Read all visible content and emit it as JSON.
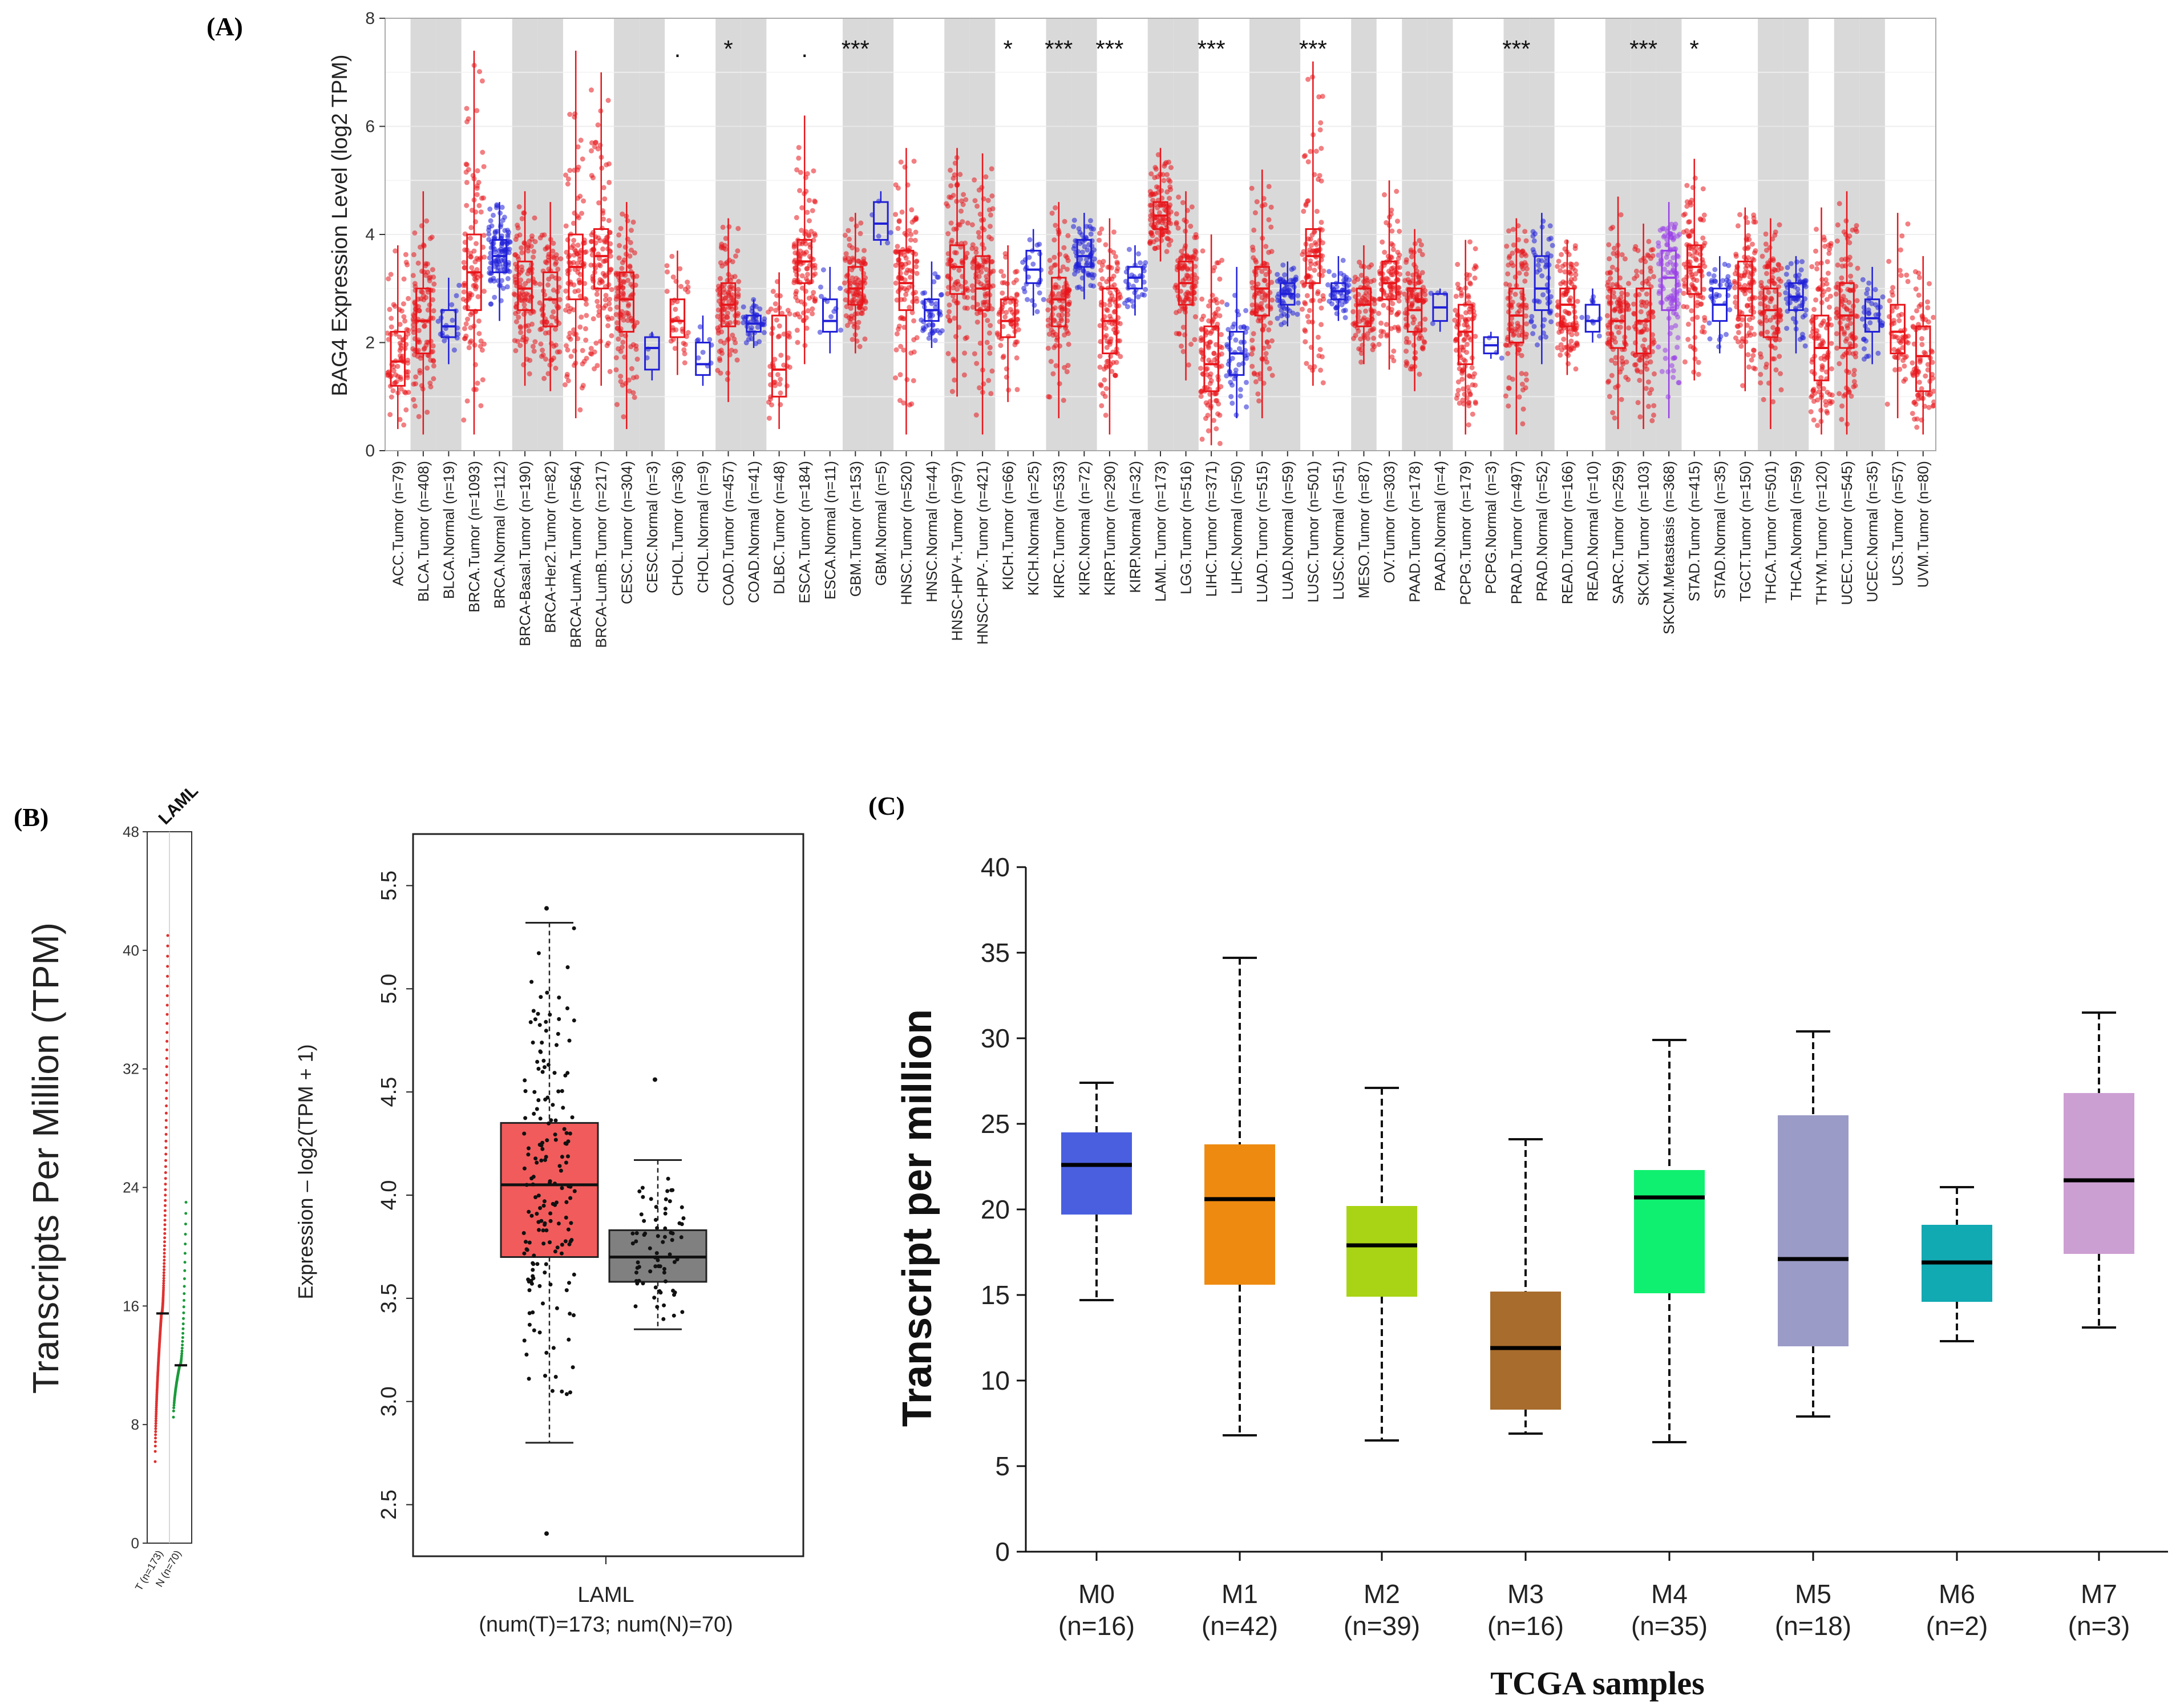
{
  "panel_labels": {
    "a": "(A)",
    "b": "(B)",
    "c": "(C)"
  },
  "chart_data": [
    {
      "id": "A",
      "type": "box",
      "ylabel": "BAG4 Expression Level (log2 TPM)",
      "ylim": [
        0,
        8
      ],
      "yticks": [
        0,
        2,
        4,
        6,
        8
      ],
      "grid": true,
      "groups": [
        {
          "label": "ACC.Tumor (n=79)",
          "kind": "T",
          "shade": false,
          "sig": "",
          "q1": 1.2,
          "med": 1.65,
          "q3": 2.2,
          "min": 0.4,
          "max": 3.8
        },
        {
          "label": "BLCA.Tumor (n=408)",
          "kind": "T",
          "shade": true,
          "sig": "",
          "q1": 1.8,
          "med": 2.4,
          "q3": 3.0,
          "min": 0.3,
          "max": 4.8
        },
        {
          "label": "BLCA.Normal (n=19)",
          "kind": "N",
          "shade": true,
          "sig": "",
          "q1": 2.1,
          "med": 2.3,
          "q3": 2.6,
          "min": 1.6,
          "max": 3.2
        },
        {
          "label": "BRCA.Tumor (n=1093)",
          "kind": "T",
          "shade": false,
          "sig": "",
          "q1": 2.6,
          "med": 3.3,
          "q3": 4.0,
          "min": 0.3,
          "max": 7.4
        },
        {
          "label": "BRCA.Normal (n=112)",
          "kind": "N",
          "shade": false,
          "sig": "",
          "q1": 3.3,
          "med": 3.6,
          "q3": 3.9,
          "min": 2.4,
          "max": 4.6
        },
        {
          "label": "BRCA-Basal.Tumor (n=190)",
          "kind": "T",
          "shade": true,
          "sig": "",
          "q1": 2.6,
          "med": 3.0,
          "q3": 3.5,
          "min": 1.2,
          "max": 4.8
        },
        {
          "label": "BRCA-Her2.Tumor (n=82)",
          "kind": "T",
          "shade": true,
          "sig": "",
          "q1": 2.3,
          "med": 2.8,
          "q3": 3.3,
          "min": 1.1,
          "max": 4.6
        },
        {
          "label": "BRCA-LumA.Tumor (n=564)",
          "kind": "T",
          "shade": false,
          "sig": "",
          "q1": 2.8,
          "med": 3.4,
          "q3": 4.0,
          "min": 0.6,
          "max": 7.4
        },
        {
          "label": "BRCA-LumB.Tumor (n=217)",
          "kind": "T",
          "shade": false,
          "sig": "",
          "q1": 3.0,
          "med": 3.6,
          "q3": 4.1,
          "min": 1.2,
          "max": 7.0
        },
        {
          "label": "CESC.Tumor (n=304)",
          "kind": "T",
          "shade": true,
          "sig": "",
          "q1": 2.2,
          "med": 2.8,
          "q3": 3.3,
          "min": 0.4,
          "max": 4.6
        },
        {
          "label": "CESC.Normal (n=3)",
          "kind": "N",
          "shade": true,
          "sig": "",
          "q1": 1.5,
          "med": 1.9,
          "q3": 2.1,
          "min": 1.3,
          "max": 2.2
        },
        {
          "label": "CHOL.Tumor (n=36)",
          "kind": "T",
          "shade": false,
          "sig": ".",
          "q1": 2.1,
          "med": 2.4,
          "q3": 2.8,
          "min": 1.4,
          "max": 3.7
        },
        {
          "label": "CHOL.Normal (n=9)",
          "kind": "N",
          "shade": false,
          "sig": "",
          "q1": 1.4,
          "med": 1.6,
          "q3": 2.0,
          "min": 1.2,
          "max": 2.5
        },
        {
          "label": "COAD.Tumor (n=457)",
          "kind": "T",
          "shade": true,
          "sig": "*",
          "q1": 2.3,
          "med": 2.7,
          "q3": 3.1,
          "min": 0.9,
          "max": 4.3
        },
        {
          "label": "COAD.Normal (n=41)",
          "kind": "N",
          "shade": true,
          "sig": "",
          "q1": 2.2,
          "med": 2.35,
          "q3": 2.5,
          "min": 1.9,
          "max": 2.8
        },
        {
          "label": "DLBC.Tumor (n=48)",
          "kind": "T",
          "shade": false,
          "sig": "",
          "q1": 1.0,
          "med": 1.5,
          "q3": 2.5,
          "min": 0.4,
          "max": 3.3
        },
        {
          "label": "ESCA.Tumor (n=184)",
          "kind": "T",
          "shade": false,
          "sig": ".",
          "q1": 3.1,
          "med": 3.5,
          "q3": 3.9,
          "min": 1.6,
          "max": 6.2
        },
        {
          "label": "ESCA.Normal (n=11)",
          "kind": "N",
          "shade": false,
          "sig": "",
          "q1": 2.2,
          "med": 2.4,
          "q3": 2.8,
          "min": 1.8,
          "max": 3.4
        },
        {
          "label": "GBM.Tumor (n=153)",
          "kind": "T",
          "shade": true,
          "sig": "***",
          "q1": 2.7,
          "med": 3.0,
          "q3": 3.4,
          "min": 1.8,
          "max": 4.4
        },
        {
          "label": "GBM.Normal (n=5)",
          "kind": "N",
          "shade": true,
          "sig": "",
          "q1": 3.9,
          "med": 4.2,
          "q3": 4.6,
          "min": 3.8,
          "max": 4.8
        },
        {
          "label": "HNSC.Tumor (n=520)",
          "kind": "T",
          "shade": false,
          "sig": "",
          "q1": 2.6,
          "med": 3.1,
          "q3": 3.7,
          "min": 0.3,
          "max": 5.6
        },
        {
          "label": "HNSC.Normal (n=44)",
          "kind": "N",
          "shade": false,
          "sig": "",
          "q1": 2.4,
          "med": 2.6,
          "q3": 2.8,
          "min": 1.9,
          "max": 3.5
        },
        {
          "label": "HNSC-HPV+.Tumor (n=97)",
          "kind": "T",
          "shade": true,
          "sig": "",
          "q1": 2.9,
          "med": 3.4,
          "q3": 3.8,
          "min": 1.0,
          "max": 5.6
        },
        {
          "label": "HNSC-HPV-.Tumor (n=421)",
          "kind": "T",
          "shade": true,
          "sig": "",
          "q1": 2.6,
          "med": 3.0,
          "q3": 3.6,
          "min": 0.3,
          "max": 5.5
        },
        {
          "label": "KICH.Tumor (n=66)",
          "kind": "T",
          "shade": false,
          "sig": "*",
          "q1": 2.1,
          "med": 2.4,
          "q3": 2.8,
          "min": 0.9,
          "max": 3.8
        },
        {
          "label": "KICH.Normal (n=25)",
          "kind": "N",
          "shade": false,
          "sig": "",
          "q1": 3.1,
          "med": 3.35,
          "q3": 3.7,
          "min": 2.5,
          "max": 4.1
        },
        {
          "label": "KIRC.Tumor (n=533)",
          "kind": "T",
          "shade": true,
          "sig": "***",
          "q1": 2.3,
          "med": 2.8,
          "q3": 3.2,
          "min": 0.6,
          "max": 4.6
        },
        {
          "label": "KIRC.Normal (n=72)",
          "kind": "N",
          "shade": true,
          "sig": "",
          "q1": 3.4,
          "med": 3.6,
          "q3": 3.9,
          "min": 2.8,
          "max": 4.4
        },
        {
          "label": "KIRP.Tumor (n=290)",
          "kind": "T",
          "shade": false,
          "sig": "***",
          "q1": 1.8,
          "med": 2.4,
          "q3": 3.0,
          "min": 0.3,
          "max": 4.3
        },
        {
          "label": "KIRP.Normal (n=32)",
          "kind": "N",
          "shade": false,
          "sig": "",
          "q1": 3.0,
          "med": 3.2,
          "q3": 3.4,
          "min": 2.5,
          "max": 3.8
        },
        {
          "label": "LAML.Tumor (n=173)",
          "kind": "T",
          "shade": true,
          "sig": "",
          "q1": 4.1,
          "med": 4.35,
          "q3": 4.6,
          "min": 3.5,
          "max": 5.6
        },
        {
          "label": "LGG.Tumor (n=516)",
          "kind": "T",
          "shade": true,
          "sig": "",
          "q1": 2.7,
          "med": 3.1,
          "q3": 3.5,
          "min": 1.3,
          "max": 4.8
        },
        {
          "label": "LIHC.Tumor (n=371)",
          "kind": "T",
          "shade": false,
          "sig": "***",
          "q1": 1.1,
          "med": 1.6,
          "q3": 2.3,
          "min": 0.1,
          "max": 4.0
        },
        {
          "label": "LIHC.Normal (n=50)",
          "kind": "N",
          "shade": false,
          "sig": "",
          "q1": 1.4,
          "med": 1.8,
          "q3": 2.2,
          "min": 0.6,
          "max": 3.4
        },
        {
          "label": "LUAD.Tumor (n=515)",
          "kind": "T",
          "shade": true,
          "sig": "",
          "q1": 2.5,
          "med": 3.0,
          "q3": 3.4,
          "min": 0.6,
          "max": 5.2
        },
        {
          "label": "LUAD.Normal (n=59)",
          "kind": "N",
          "shade": true,
          "sig": "",
          "q1": 2.7,
          "med": 2.9,
          "q3": 3.1,
          "min": 2.3,
          "max": 3.5
        },
        {
          "label": "LUSC.Tumor (n=501)",
          "kind": "T",
          "shade": false,
          "sig": "***",
          "q1": 3.1,
          "med": 3.6,
          "q3": 4.1,
          "min": 1.2,
          "max": 7.2
        },
        {
          "label": "LUSC.Normal (n=51)",
          "kind": "N",
          "shade": false,
          "sig": "",
          "q1": 2.8,
          "med": 2.95,
          "q3": 3.1,
          "min": 2.4,
          "max": 3.6
        },
        {
          "label": "MESO.Tumor (n=87)",
          "kind": "T",
          "shade": true,
          "sig": "",
          "q1": 2.3,
          "med": 2.7,
          "q3": 3.0,
          "min": 1.6,
          "max": 3.8
        },
        {
          "label": "OV.Tumor (n=303)",
          "kind": "T",
          "shade": false,
          "sig": "",
          "q1": 2.8,
          "med": 3.1,
          "q3": 3.5,
          "min": 1.5,
          "max": 5.0
        },
        {
          "label": "PAAD.Tumor (n=178)",
          "kind": "T",
          "shade": true,
          "sig": "",
          "q1": 2.2,
          "med": 2.6,
          "q3": 3.0,
          "min": 1.1,
          "max": 4.1
        },
        {
          "label": "PAAD.Normal (n=4)",
          "kind": "N",
          "shade": true,
          "sig": "",
          "q1": 2.4,
          "med": 2.65,
          "q3": 2.9,
          "min": 2.2,
          "max": 3.0
        },
        {
          "label": "PCPG.Tumor (n=179)",
          "kind": "T",
          "shade": false,
          "sig": "",
          "q1": 1.6,
          "med": 2.2,
          "q3": 2.7,
          "min": 0.3,
          "max": 3.9
        },
        {
          "label": "PCPG.Normal (n=3)",
          "kind": "N",
          "shade": false,
          "sig": "",
          "q1": 1.8,
          "med": 1.95,
          "q3": 2.1,
          "min": 1.7,
          "max": 2.2
        },
        {
          "label": "PRAD.Tumor (n=497)",
          "kind": "T",
          "shade": true,
          "sig": "***",
          "q1": 2.0,
          "med": 2.5,
          "q3": 3.0,
          "min": 0.3,
          "max": 4.3
        },
        {
          "label": "PRAD.Normal (n=52)",
          "kind": "N",
          "shade": true,
          "sig": "",
          "q1": 2.6,
          "med": 3.0,
          "q3": 3.6,
          "min": 1.6,
          "max": 4.4
        },
        {
          "label": "READ.Tumor (n=166)",
          "kind": "T",
          "shade": false,
          "sig": "",
          "q1": 2.3,
          "med": 2.7,
          "q3": 3.0,
          "min": 1.4,
          "max": 3.9
        },
        {
          "label": "READ.Normal (n=10)",
          "kind": "N",
          "shade": false,
          "sig": "",
          "q1": 2.2,
          "med": 2.4,
          "q3": 2.7,
          "min": 2.0,
          "max": 3.0
        },
        {
          "label": "SARC.Tumor (n=259)",
          "kind": "T",
          "shade": true,
          "sig": "",
          "q1": 1.9,
          "med": 2.4,
          "q3": 3.0,
          "min": 0.4,
          "max": 4.7
        },
        {
          "label": "SKCM.Tumor (n=103)",
          "kind": "T",
          "shade": true,
          "sig": "***",
          "q1": 1.8,
          "med": 2.4,
          "q3": 3.0,
          "min": 0.4,
          "max": 4.2
        },
        {
          "label": "SKCM.Metastasis (n=368)",
          "kind": "M",
          "shade": true,
          "sig": "",
          "q1": 2.6,
          "med": 3.2,
          "q3": 3.7,
          "min": 0.6,
          "max": 4.6
        },
        {
          "label": "STAD.Tumor (n=415)",
          "kind": "T",
          "shade": false,
          "sig": "*",
          "q1": 2.9,
          "med": 3.4,
          "q3": 3.8,
          "min": 1.3,
          "max": 5.4
        },
        {
          "label": "STAD.Normal (n=35)",
          "kind": "N",
          "shade": false,
          "sig": "",
          "q1": 2.4,
          "med": 2.7,
          "q3": 3.0,
          "min": 1.8,
          "max": 3.6
        },
        {
          "label": "TGCT.Tumor (n=150)",
          "kind": "T",
          "shade": false,
          "sig": "",
          "q1": 2.5,
          "med": 3.0,
          "q3": 3.5,
          "min": 1.1,
          "max": 4.5
        },
        {
          "label": "THCA.Tumor (n=501)",
          "kind": "T",
          "shade": true,
          "sig": "",
          "q1": 2.1,
          "med": 2.6,
          "q3": 3.0,
          "min": 0.4,
          "max": 4.3
        },
        {
          "label": "THCA.Normal (n=59)",
          "kind": "N",
          "shade": true,
          "sig": "",
          "q1": 2.6,
          "med": 2.85,
          "q3": 3.1,
          "min": 1.8,
          "max": 3.6
        },
        {
          "label": "THYM.Tumor (n=120)",
          "kind": "T",
          "shade": false,
          "sig": "",
          "q1": 1.3,
          "med": 1.9,
          "q3": 2.5,
          "min": 0.3,
          "max": 4.5
        },
        {
          "label": "UCEC.Tumor (n=545)",
          "kind": "T",
          "shade": true,
          "sig": "",
          "q1": 1.9,
          "med": 2.5,
          "q3": 3.1,
          "min": 0.3,
          "max": 4.8
        },
        {
          "label": "UCEC.Normal (n=35)",
          "kind": "N",
          "shade": true,
          "sig": "",
          "q1": 2.2,
          "med": 2.45,
          "q3": 2.8,
          "min": 1.6,
          "max": 3.4
        },
        {
          "label": "UCS.Tumor (n=57)",
          "kind": "T",
          "shade": false,
          "sig": "",
          "q1": 1.8,
          "med": 2.2,
          "q3": 2.7,
          "min": 0.6,
          "max": 4.4
        },
        {
          "label": "UVM.Tumor (n=80)",
          "kind": "T",
          "shade": false,
          "sig": "",
          "q1": 1.1,
          "med": 1.75,
          "q3": 2.3,
          "min": 0.3,
          "max": 3.6
        }
      ],
      "colors": {
        "T": "#e8161b",
        "N": "#2020d8",
        "M": "#9a40e8",
        "shade": "#d9d9d9"
      }
    },
    {
      "id": "B-left",
      "type": "scatter",
      "ylabel": "Transcripts Per Million (TPM)",
      "ylim": [
        0,
        48
      ],
      "yticks": [
        0,
        8,
        16,
        24,
        32,
        40,
        48
      ],
      "column_label": "LAML",
      "xticks": [
        "T (n=173)",
        "N (n=70)"
      ],
      "series": [
        {
          "name": "T",
          "n": 173,
          "median": 15.5,
          "min": 5.5,
          "max": 41,
          "color": "#e03030"
        },
        {
          "name": "N",
          "n": 70,
          "median": 12.0,
          "min": 8.5,
          "max": 23,
          "color": "#1a9a3a"
        }
      ]
    },
    {
      "id": "B-right",
      "type": "box",
      "ylabel": "Expression – log2(TPM + 1)",
      "ylim": [
        2.25,
        5.75
      ],
      "yticks": [
        2.5,
        3.0,
        3.5,
        4.0,
        4.5,
        5.0,
        5.5
      ],
      "xlabel": "LAML",
      "subtitle": "(num(T)=173; num(N)=70)",
      "boxes": [
        {
          "name": "T",
          "min": 2.8,
          "q1": 3.7,
          "med": 4.05,
          "q3": 4.35,
          "max": 5.32,
          "outliers": [
            2.36,
            5.39
          ],
          "n": 173,
          "color": "#f25b5b"
        },
        {
          "name": "N",
          "min": 3.35,
          "q1": 3.58,
          "med": 3.7,
          "q3": 3.83,
          "max": 4.17,
          "outliers": [
            4.56
          ],
          "n": 70,
          "color": "#808080"
        }
      ]
    },
    {
      "id": "C",
      "type": "box",
      "ylabel": "Transcript per million",
      "xlabel": "TCGA samples",
      "ylim": [
        0,
        40
      ],
      "yticks": [
        0,
        5,
        10,
        15,
        20,
        25,
        30,
        35,
        40
      ],
      "categories": [
        "M0",
        "M1",
        "M2",
        "M3",
        "M4",
        "M5",
        "M6",
        "M7"
      ],
      "counts": [
        "(n=16)",
        "(n=42)",
        "(n=39)",
        "(n=16)",
        "(n=35)",
        "(n=18)",
        "(n=2)",
        "(n=3)"
      ],
      "boxes": [
        {
          "min": 14.7,
          "q1": 19.7,
          "med": 22.6,
          "q3": 24.5,
          "max": 27.4,
          "color": "#4a5fe0"
        },
        {
          "min": 6.8,
          "q1": 15.6,
          "med": 20.6,
          "q3": 23.8,
          "max": 34.7,
          "color": "#ee8a10"
        },
        {
          "min": 6.5,
          "q1": 14.9,
          "med": 17.9,
          "q3": 20.2,
          "max": 27.1,
          "color": "#a9d415"
        },
        {
          "min": 6.9,
          "q1": 8.3,
          "med": 11.9,
          "q3": 15.2,
          "max": 24.1,
          "color": "#a86c2c"
        },
        {
          "min": 6.4,
          "q1": 15.1,
          "med": 20.7,
          "q3": 22.3,
          "max": 29.9,
          "color": "#10f070"
        },
        {
          "min": 7.9,
          "q1": 12.0,
          "med": 17.1,
          "q3": 25.5,
          "max": 30.4,
          "color": "#9b9bc7"
        },
        {
          "min": 12.3,
          "q1": 14.6,
          "med": 16.9,
          "q3": 19.1,
          "max": 21.3,
          "color": "#11a9b2"
        },
        {
          "min": 13.1,
          "q1": 17.4,
          "med": 21.7,
          "q3": 26.8,
          "max": 31.5,
          "color": "#cc9fd2"
        }
      ]
    }
  ]
}
